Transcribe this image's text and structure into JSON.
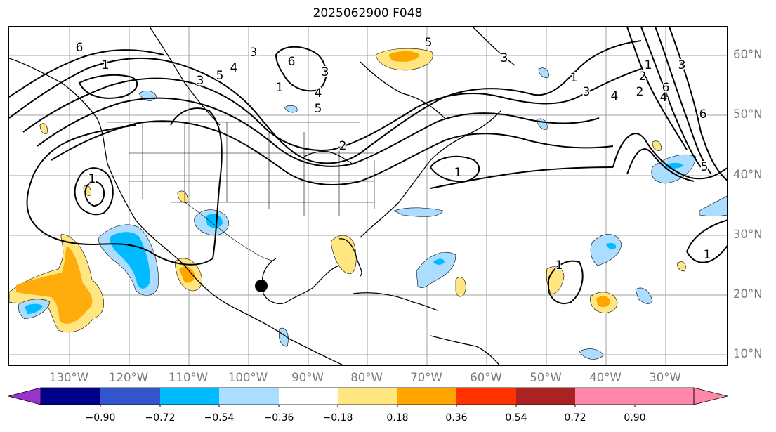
{
  "title": "2025062900 F048",
  "lat_labels": [
    "60°N",
    "50°N",
    "40°N",
    "30°N",
    "20°N",
    "10°N"
  ],
  "lon_labels": [
    "130°W",
    "120°W",
    "110°W",
    "100°W",
    "90°W",
    "80°W",
    "70°W",
    "60°W",
    "50°W",
    "40°W",
    "30°W"
  ],
  "colorbar": {
    "ticks": [
      "−0.90",
      "−0.72",
      "−0.54",
      "−0.36",
      "−0.18",
      "0.18",
      "0.36",
      "0.54",
      "0.72",
      "0.90"
    ],
    "colors": [
      "#9933cc",
      "#000088",
      "#3355cc",
      "#00bbff",
      "#aaddff",
      "#ffffff",
      "#ffe680",
      "#ffa500",
      "#ff3300",
      "#aa2222",
      "#ff88aa"
    ],
    "extend": "both"
  },
  "contour_labels": [
    "6",
    "1",
    "3",
    "5",
    "4",
    "3",
    "6",
    "3",
    "5",
    "4",
    "1",
    "2",
    "5",
    "3",
    "1",
    "3",
    "4",
    "6",
    "2",
    "1",
    "3",
    "2",
    "6",
    "4",
    "5",
    "1",
    "1",
    "1",
    "1"
  ],
  "marker": "storm-center-dot",
  "colors": {
    "contour": "#000000",
    "coast": "#000000",
    "grid": "#a0a0a0"
  }
}
